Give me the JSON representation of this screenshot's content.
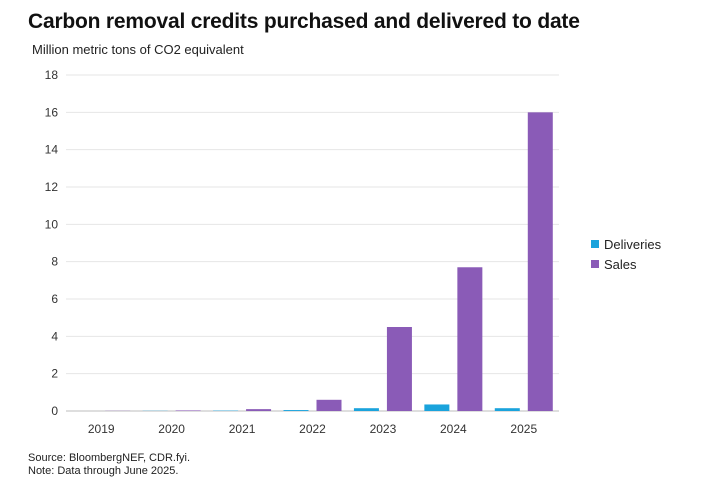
{
  "title": "Carbon removal credits purchased and delivered to date",
  "subtitle": "Million metric tons of CO2 equivalent",
  "source": "Source: BloombergNEF, CDR.fyi.",
  "note": "Note: Data through June 2025.",
  "colors": {
    "deliveries": "#1aa3dc",
    "sales": "#8a5bb7",
    "grid": "#e6e6e6",
    "axis": "#bdbdbd"
  },
  "chart_data": {
    "type": "bar",
    "categories": [
      "2019",
      "2020",
      "2021",
      "2022",
      "2023",
      "2024",
      "2025"
    ],
    "series": [
      {
        "name": "Deliveries",
        "values": [
          0,
          0.01,
          0.02,
          0.05,
          0.15,
          0.35,
          0.15
        ]
      },
      {
        "name": "Sales",
        "values": [
          0.01,
          0.03,
          0.1,
          0.6,
          4.5,
          7.7,
          16.0
        ]
      }
    ],
    "yticks": [
      "0",
      "2",
      "4",
      "6",
      "8",
      "10",
      "12",
      "14",
      "16",
      "18"
    ],
    "ylim": [
      0,
      18
    ],
    "grid": true,
    "legend_position": "right"
  }
}
